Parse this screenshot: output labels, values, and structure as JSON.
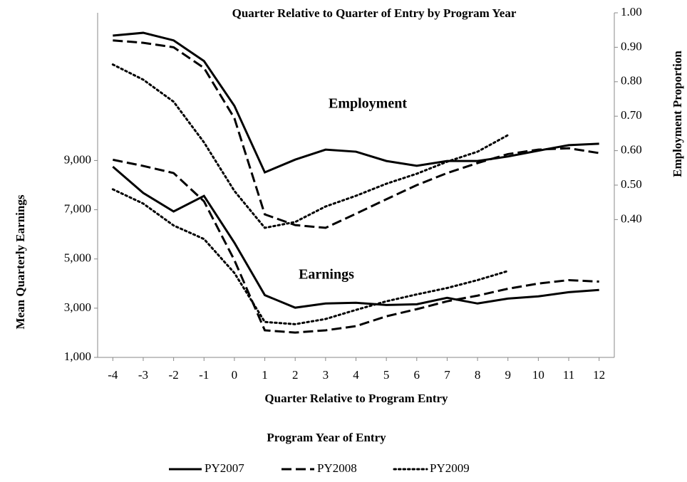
{
  "chart_data": {
    "type": "line",
    "title": "Quarter Relative to Quarter of Entry by Program Year",
    "xlabel": "Quarter Relative to Program Entry",
    "ylabel": "Mean Quarterly  Earnings",
    "y2label": "Employment  Proportion",
    "legend_title": "Program  Year  of Entry",
    "annotations": [
      "Employment",
      "Earnings"
    ],
    "x": [
      -4,
      -3,
      -2,
      -1,
      0,
      1,
      2,
      3,
      4,
      5,
      6,
      7,
      8,
      9,
      10,
      11,
      12
    ],
    "xlim": [
      -4.5,
      12.5
    ],
    "xticks": [
      -4,
      -3,
      -2,
      -1,
      0,
      1,
      2,
      3,
      4,
      5,
      6,
      7,
      8,
      9,
      10,
      11,
      12
    ],
    "ylim": [
      1000,
      15000
    ],
    "yticks": [
      {
        "value": 1000,
        "label": "1,000"
      },
      {
        "value": 3000,
        "label": "3,000"
      },
      {
        "value": 5000,
        "label": "5,000"
      },
      {
        "value": 7000,
        "label": "7,000"
      },
      {
        "value": 9000,
        "label": "9,000"
      }
    ],
    "y2lim": [
      0,
      1
    ],
    "y2ticks": [
      {
        "value": 0.4,
        "label": "0.40"
      },
      {
        "value": 0.5,
        "label": "0.50"
      },
      {
        "value": 0.6,
        "label": "0.60"
      },
      {
        "value": 0.7,
        "label": "0.70"
      },
      {
        "value": 0.8,
        "label": "0.80"
      },
      {
        "value": 0.9,
        "label": "0.90"
      },
      {
        "value": 1.0,
        "label": "1.00"
      }
    ],
    "series": [
      {
        "name": "PY2007",
        "color": "#000000",
        "dash": "solid",
        "earnings": [
          8750,
          7680,
          6930,
          7560,
          5660,
          3530,
          3020,
          3190,
          3220,
          3130,
          3160,
          3420,
          3190,
          3390,
          3480,
          3650,
          3740
        ],
        "employment": [
          0.934,
          0.942,
          0.92,
          0.86,
          0.73,
          0.537,
          0.574,
          0.603,
          0.597,
          0.57,
          0.556,
          0.57,
          0.57,
          0.583,
          0.6,
          0.616,
          0.62
        ]
      },
      {
        "name": "PY2008",
        "color": "#000000",
        "dash": "dashed",
        "earnings": [
          9030,
          8780,
          8490,
          7340,
          4950,
          2100,
          2010,
          2100,
          2270,
          2670,
          2960,
          3280,
          3510,
          3790,
          4000,
          4140,
          4080
        ],
        "employment": [
          0.92,
          0.913,
          0.9,
          0.84,
          0.694,
          0.415,
          0.384,
          0.376,
          0.417,
          0.459,
          0.5,
          0.535,
          0.564,
          0.59,
          0.603,
          0.607,
          0.593
        ]
      },
      {
        "name": "PY2009",
        "color": "#000000",
        "dash": "dotted",
        "earnings": [
          7830,
          7250,
          6360,
          5810,
          4430,
          2440,
          2350,
          2560,
          2930,
          3280,
          3560,
          3820,
          4140,
          4510,
          null,
          null,
          null
        ],
        "employment": [
          0.85,
          0.806,
          0.742,
          0.624,
          0.483,
          0.376,
          0.393,
          0.438,
          0.469,
          0.504,
          0.533,
          0.568,
          0.597,
          0.645,
          null,
          null,
          null
        ]
      }
    ]
  }
}
